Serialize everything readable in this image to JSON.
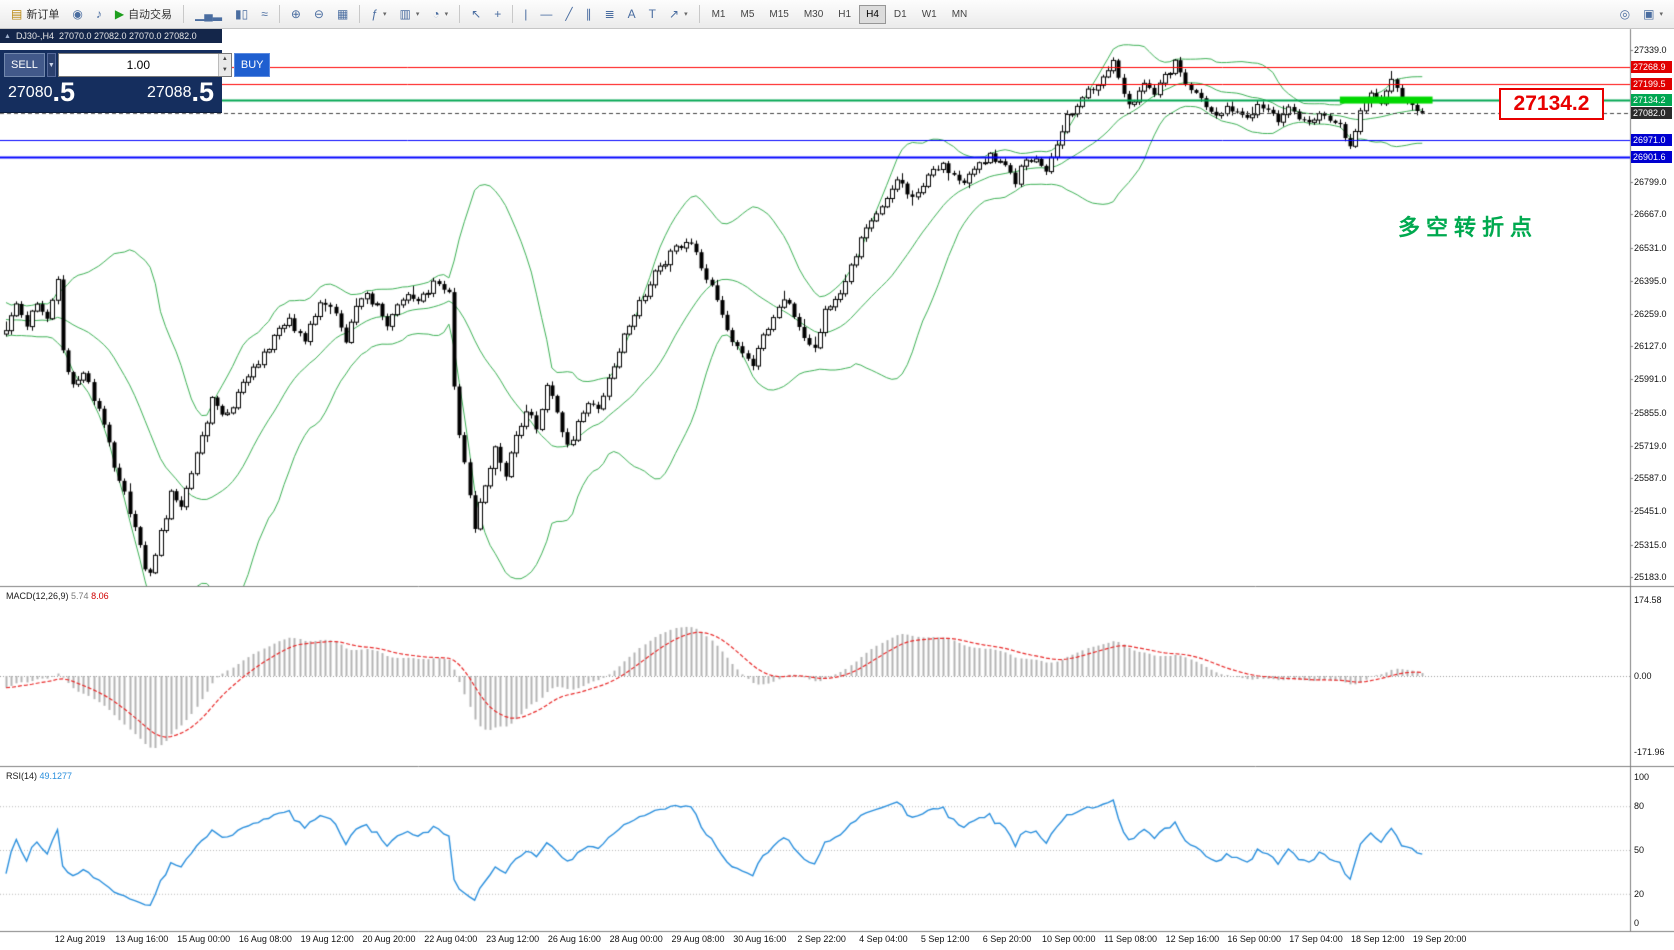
{
  "toolbar": {
    "new_order_label": "新订单",
    "auto_trading_label": "自动交易",
    "timeframes": [
      "M1",
      "M5",
      "M15",
      "M30",
      "H1",
      "H4",
      "D1",
      "W1",
      "MN"
    ],
    "active_timeframe": "H4",
    "items": [
      {
        "name": "new-order-button",
        "icon": "new-order-icon",
        "glyph": "▤",
        "label": "新订单",
        "glyph_color": "#b8860b"
      },
      {
        "name": "profile-button",
        "icon": "profile-icon",
        "glyph": "◉"
      },
      {
        "name": "sound-button",
        "icon": "sound-icon",
        "glyph": "♪"
      },
      {
        "name": "auto-trading-button",
        "icon": "auto-trading-icon",
        "glyph": "▶",
        "label": "自动交易",
        "glyph_color": "#1d9e1d"
      },
      {
        "type": "sep"
      },
      {
        "name": "bar-chart-button",
        "icon": "bar-chart-icon",
        "glyph": "▁▄▂"
      },
      {
        "name": "candlestick-chart-button",
        "icon": "candlestick-chart-icon",
        "glyph": "▮▯"
      },
      {
        "name": "line-chart-button",
        "icon": "line-chart-icon",
        "glyph": "≈"
      },
      {
        "type": "sep"
      },
      {
        "name": "zoom-in-button",
        "icon": "zoom-in-icon",
        "glyph": "⊕"
      },
      {
        "name": "zoom-out-button",
        "icon": "zoom-out-icon",
        "glyph": "⊖"
      },
      {
        "name": "tile-windows-button",
        "icon": "tile-windows-icon",
        "glyph": "▦"
      },
      {
        "type": "sep"
      },
      {
        "name": "indicators-button",
        "icon": "indicators-icon",
        "glyph": "ƒ",
        "dropdown": true
      },
      {
        "name": "periods-button",
        "icon": "periods-icon",
        "glyph": "▥",
        "dropdown": true
      },
      {
        "name": "templates-button",
        "icon": "templates-icon",
        "glyph": "◔",
        "dropdown": true
      },
      {
        "type": "sep"
      },
      {
        "name": "cursor-button",
        "icon": "cursor-icon",
        "glyph": "↖"
      },
      {
        "name": "crosshair-button",
        "icon": "crosshair-icon",
        "glyph": "+"
      },
      {
        "type": "sep"
      },
      {
        "name": "vertical-line-button",
        "icon": "vertical-line-icon",
        "glyph": "|"
      },
      {
        "name": "horizontal-line-button",
        "icon": "horizontal-line-icon",
        "glyph": "—"
      },
      {
        "name": "trendline-button",
        "icon": "trendline-icon",
        "glyph": "╱"
      },
      {
        "name": "channel-button",
        "icon": "channel-icon",
        "glyph": "∥"
      },
      {
        "name": "fibonacci-button",
        "icon": "fibonacci-icon",
        "glyph": "≣"
      },
      {
        "name": "text-button",
        "icon": "text-icon",
        "glyph": "A"
      },
      {
        "name": "text-label-button",
        "icon": "text-label-icon",
        "glyph": "T"
      },
      {
        "name": "arrows-button",
        "icon": "arrows-icon",
        "glyph": "↗",
        "dropdown": true
      },
      {
        "type": "sep"
      },
      {
        "type": "timeframes"
      },
      {
        "type": "spacer"
      },
      {
        "name": "search-button",
        "icon": "search-icon",
        "glyph": "◎"
      },
      {
        "name": "new-chart-button",
        "icon": "new-chart-icon",
        "glyph": "▣",
        "dropdown": true
      }
    ]
  },
  "chart_header": {
    "symbol": "DJ30-,H4",
    "ohlc": "27070.0 27082.0 27070.0 27082.0"
  },
  "trade_panel": {
    "sell_label": "SELL",
    "buy_label": "BUY",
    "volume": "1.00",
    "sell_price": "27080",
    "sell_fraction": ".5",
    "buy_price": "27088",
    "buy_fraction": ".5"
  },
  "annotations": {
    "price_callout": "27134.2",
    "turning_point": "多空转折点"
  },
  "macd_panel": {
    "name": "MACD(12,26,9)",
    "value": "5.74",
    "signal_value": "8.06",
    "axis": [
      "174.58",
      "0.00",
      "-171.96"
    ]
  },
  "rsi_panel": {
    "name": "RSI(14)",
    "value": "49.1277",
    "axis": [
      "100",
      "80",
      "50",
      "20",
      "0"
    ]
  },
  "time_axis": [
    "12 Aug 2019",
    "13 Aug 16:00",
    "15 Aug 00:00",
    "16 Aug 08:00",
    "19 Aug 12:00",
    "20 Aug 20:00",
    "22 Aug 04:00",
    "23 Aug 12:00",
    "26 Aug 16:00",
    "28 Aug 00:00",
    "29 Aug 08:00",
    "30 Aug 16:00",
    "2 Sep 22:00",
    "4 Sep 04:00",
    "5 Sep 12:00",
    "6 Sep 20:00",
    "10 Sep 00:00",
    "11 Sep 08:00",
    "12 Sep 16:00",
    "16 Sep 00:00",
    "17 Sep 04:00",
    "18 Sep 12:00",
    "19 Sep 20:00"
  ],
  "chart_data": {
    "type": "candlestick",
    "title": "DJ30-,H4",
    "bars": 276,
    "price_range": [
      25183.0,
      27339.0
    ],
    "price_axis_ticks": [
      "27339.0",
      "26799.0",
      "26667.0",
      "26531.0",
      "26395.0",
      "26259.0",
      "26127.0",
      "25991.0",
      "25855.0",
      "25719.0",
      "25587.0",
      "25451.0",
      "25315.0",
      "25183.0"
    ],
    "levels": [
      {
        "price": 27268.9,
        "label": "27268.9",
        "color": "#ff0000",
        "badge": "#e00000",
        "width": 1,
        "style": "solid"
      },
      {
        "price": 27199.5,
        "label": "27199.5",
        "color": "#ff0000",
        "badge": "#e00000",
        "width": 1,
        "style": "solid"
      },
      {
        "price": 27134.2,
        "label": "27134.2",
        "color": "#00a651",
        "badge": "#00a651",
        "width": 2,
        "style": "solid"
      },
      {
        "price": 27082.0,
        "label": "27082.0",
        "color": "#404040",
        "badge": "#2b2b2b",
        "width": 1,
        "style": "dash",
        "current": true
      },
      {
        "price": 26971.0,
        "label": "26971.0",
        "color": "#0000ff",
        "badge": "#0000d0",
        "width": 1,
        "style": "solid"
      },
      {
        "price": 26901.6,
        "label": "26901.6",
        "color": "#0000ff",
        "badge": "#0000d0",
        "width": 2,
        "style": "solid"
      }
    ],
    "highlight_segment": {
      "price": 27134.2,
      "from_bar": 259,
      "to_bar": 277,
      "color": "#00d800",
      "thickness": 7
    },
    "bollinger": {
      "period": 20,
      "deviation": 2.0,
      "color": "#3cb054"
    },
    "macd": {
      "fast": 12,
      "slow": 26,
      "signal": 9,
      "range": [
        -171.96,
        174.58
      ],
      "histogram_color": "#b4b4b4",
      "signal_color": "#e82a2a"
    },
    "rsi": {
      "period": 14,
      "range": [
        0,
        100
      ],
      "levels": [
        80,
        50,
        20
      ],
      "color": "#2a8fdd"
    },
    "price_path": [
      [
        0,
        26180
      ],
      [
        2,
        26290
      ],
      [
        4,
        26200
      ],
      [
        6,
        26310
      ],
      [
        8,
        26250
      ],
      [
        10,
        26390
      ],
      [
        11,
        26120
      ],
      [
        13,
        25960
      ],
      [
        15,
        26030
      ],
      [
        17,
        25900
      ],
      [
        19,
        25820
      ],
      [
        21,
        25640
      ],
      [
        23,
        25540
      ],
      [
        25,
        25380
      ],
      [
        27,
        25230
      ],
      [
        28,
        25190
      ],
      [
        30,
        25360
      ],
      [
        32,
        25520
      ],
      [
        34,
        25460
      ],
      [
        36,
        25610
      ],
      [
        38,
        25760
      ],
      [
        40,
        25900
      ],
      [
        43,
        25850
      ],
      [
        46,
        25960
      ],
      [
        49,
        26060
      ],
      [
        52,
        26160
      ],
      [
        55,
        26230
      ],
      [
        58,
        26160
      ],
      [
        60,
        26260
      ],
      [
        62,
        26310
      ],
      [
        64,
        26250
      ],
      [
        66,
        26160
      ],
      [
        68,
        26290
      ],
      [
        70,
        26330
      ],
      [
        72,
        26300
      ],
      [
        74,
        26210
      ],
      [
        76,
        26290
      ],
      [
        78,
        26350
      ],
      [
        80,
        26310
      ],
      [
        82,
        26360
      ],
      [
        84,
        26390
      ],
      [
        86,
        26340
      ],
      [
        87,
        25980
      ],
      [
        88,
        25760
      ],
      [
        90,
        25510
      ],
      [
        91,
        25390
      ],
      [
        93,
        25560
      ],
      [
        95,
        25710
      ],
      [
        97,
        25610
      ],
      [
        99,
        25760
      ],
      [
        101,
        25860
      ],
      [
        103,
        25800
      ],
      [
        105,
        25950
      ],
      [
        107,
        25860
      ],
      [
        109,
        25710
      ],
      [
        111,
        25810
      ],
      [
        113,
        25910
      ],
      [
        115,
        25860
      ],
      [
        117,
        26010
      ],
      [
        119,
        26110
      ],
      [
        121,
        26210
      ],
      [
        124,
        26350
      ],
      [
        127,
        26460
      ],
      [
        130,
        26520
      ],
      [
        133,
        26545
      ],
      [
        135,
        26460
      ],
      [
        137,
        26360
      ],
      [
        139,
        26260
      ],
      [
        141,
        26160
      ],
      [
        143,
        26110
      ],
      [
        145,
        26060
      ],
      [
        147,
        26160
      ],
      [
        149,
        26260
      ],
      [
        151,
        26310
      ],
      [
        153,
        26260
      ],
      [
        155,
        26160
      ],
      [
        157,
        26110
      ],
      [
        159,
        26260
      ],
      [
        161,
        26310
      ],
      [
        164,
        26460
      ],
      [
        167,
        26610
      ],
      [
        170,
        26710
      ],
      [
        173,
        26790
      ],
      [
        176,
        26740
      ],
      [
        179,
        26820
      ],
      [
        182,
        26860
      ],
      [
        185,
        26790
      ],
      [
        188,
        26860
      ],
      [
        191,
        26910
      ],
      [
        194,
        26860
      ],
      [
        196,
        26810
      ],
      [
        198,
        26890
      ],
      [
        200,
        26910
      ],
      [
        202,
        26860
      ],
      [
        204,
        26960
      ],
      [
        206,
        27060
      ],
      [
        209,
        27160
      ],
      [
        212,
        27210
      ],
      [
        215,
        27300
      ],
      [
        217,
        27160
      ],
      [
        219,
        27110
      ],
      [
        221,
        27210
      ],
      [
        223,
        27160
      ],
      [
        225,
        27230
      ],
      [
        227,
        27290
      ],
      [
        229,
        27210
      ],
      [
        231,
        27160
      ],
      [
        233,
        27110
      ],
      [
        235,
        27060
      ],
      [
        237,
        27110
      ],
      [
        239,
        27085
      ],
      [
        241,
        27055
      ],
      [
        243,
        27105
      ],
      [
        245,
        27085
      ],
      [
        247,
        27055
      ],
      [
        249,
        27105
      ],
      [
        251,
        27065
      ],
      [
        253,
        27035
      ],
      [
        255,
        27085
      ],
      [
        257,
        27055
      ],
      [
        259,
        27025
      ],
      [
        261,
        26940
      ],
      [
        263,
        27085
      ],
      [
        265,
        27160
      ],
      [
        267,
        27110
      ],
      [
        269,
        27230
      ],
      [
        271,
        27130
      ],
      [
        273,
        27105
      ],
      [
        275,
        27082
      ]
    ]
  }
}
